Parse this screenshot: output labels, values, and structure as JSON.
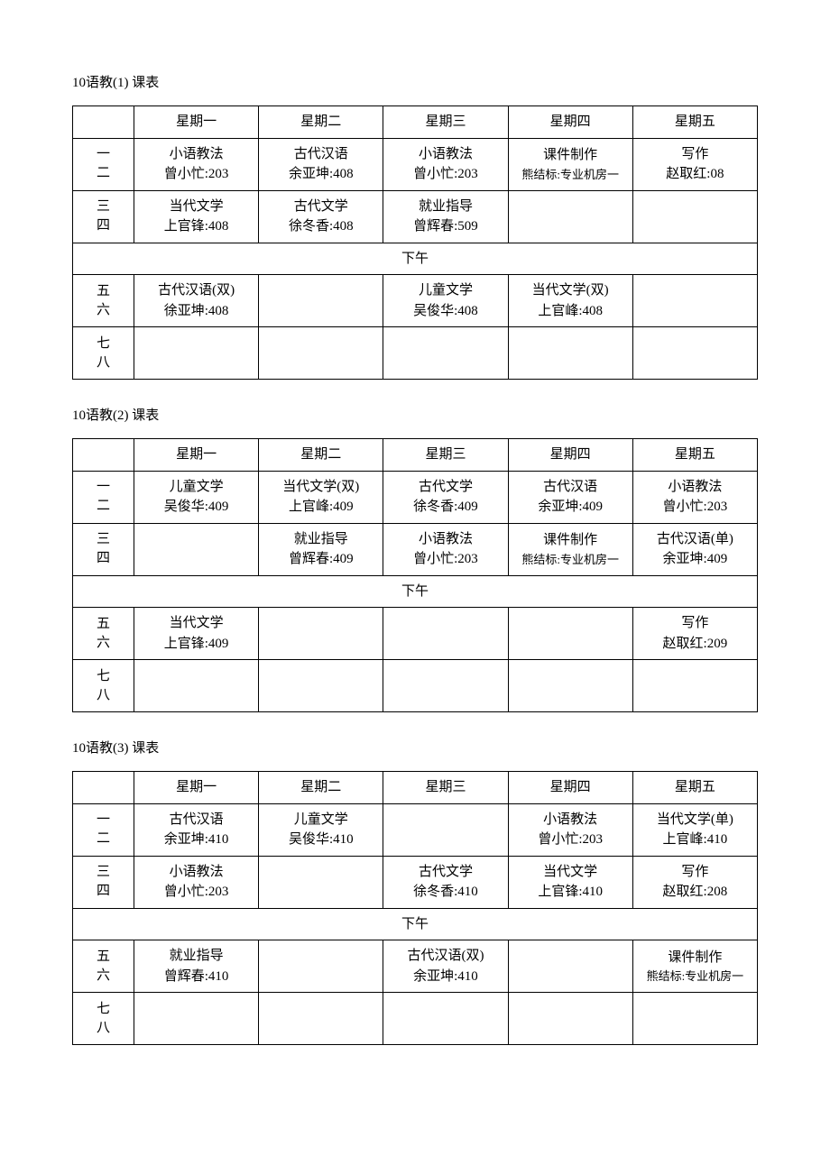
{
  "days": [
    "星期一",
    "星期二",
    "星期三",
    "星期四",
    "星期五"
  ],
  "periods": {
    "p12": "一\n二",
    "p34": "三\n四",
    "p56": "五\n六",
    "p78": "七\n八"
  },
  "afternoon_label": "下午",
  "tables": [
    {
      "title": "10语教(1)  课表",
      "rows": {
        "p12": [
          {
            "l1": "小语教法",
            "l2": "曾小忙:203"
          },
          {
            "l1": "古代汉语",
            "l2": "余亚坤:408"
          },
          {
            "l1": "小语教法",
            "l2": "曾小忙:203"
          },
          {
            "l1": "课件制作",
            "l2": "熊结标:专业机房一",
            "small2": true
          },
          {
            "l1": "写作",
            "l2": "赵取红:08"
          }
        ],
        "p34": [
          {
            "l1": "当代文学",
            "l2": "上官锋:408"
          },
          {
            "l1": "古代文学",
            "l2": "徐冬香:408"
          },
          {
            "l1": "就业指导",
            "l2": "曾辉春:509"
          },
          {
            "l1": "",
            "l2": ""
          },
          {
            "l1": "",
            "l2": ""
          }
        ],
        "p56": [
          {
            "l1": "古代汉语(双)",
            "l2": "徐亚坤:408"
          },
          {
            "l1": "",
            "l2": ""
          },
          {
            "l1": "儿童文学",
            "l2": "吴俊华:408"
          },
          {
            "l1": "当代文学(双)",
            "l2": "上官峰:408"
          },
          {
            "l1": "",
            "l2": ""
          }
        ],
        "p78": [
          {
            "l1": "",
            "l2": ""
          },
          {
            "l1": "",
            "l2": ""
          },
          {
            "l1": "",
            "l2": ""
          },
          {
            "l1": "",
            "l2": ""
          },
          {
            "l1": "",
            "l2": ""
          }
        ]
      }
    },
    {
      "title": "10语教(2)  课表",
      "rows": {
        "p12": [
          {
            "l1": "儿童文学",
            "l2": "吴俊华:409"
          },
          {
            "l1": "当代文学(双)",
            "l2": "上官峰:409"
          },
          {
            "l1": "古代文学",
            "l2": "徐冬香:409"
          },
          {
            "l1": "古代汉语",
            "l2": "余亚坤:409"
          },
          {
            "l1": "小语教法",
            "l2": "曾小忙:203"
          }
        ],
        "p34": [
          {
            "l1": "",
            "l2": ""
          },
          {
            "l1": "就业指导",
            "l2": "曾辉春:409"
          },
          {
            "l1": "小语教法",
            "l2": "曾小忙:203"
          },
          {
            "l1": "课件制作",
            "l2": "熊结标:专业机房一",
            "small2": true
          },
          {
            "l1": "古代汉语(单)",
            "l2": "余亚坤:409"
          }
        ],
        "p56": [
          {
            "l1": "当代文学",
            "l2": "上官锋:409"
          },
          {
            "l1": "",
            "l2": ""
          },
          {
            "l1": "",
            "l2": ""
          },
          {
            "l1": "",
            "l2": ""
          },
          {
            "l1": "写作",
            "l2": "赵取红:209"
          }
        ],
        "p78": [
          {
            "l1": "",
            "l2": ""
          },
          {
            "l1": "",
            "l2": ""
          },
          {
            "l1": "",
            "l2": ""
          },
          {
            "l1": "",
            "l2": ""
          },
          {
            "l1": "",
            "l2": ""
          }
        ]
      }
    },
    {
      "title": "10语教(3)  课表",
      "rows": {
        "p12": [
          {
            "l1": "古代汉语",
            "l2": "余亚坤:410"
          },
          {
            "l1": "儿童文学",
            "l2": "吴俊华:410"
          },
          {
            "l1": "",
            "l2": ""
          },
          {
            "l1": "小语教法",
            "l2": "曾小忙:203"
          },
          {
            "l1": "当代文学(单)",
            "l2": "上官峰:410"
          }
        ],
        "p34": [
          {
            "l1": "小语教法",
            "l2": "曾小忙:203"
          },
          {
            "l1": "",
            "l2": ""
          },
          {
            "l1": "古代文学",
            "l2": "徐冬香:410"
          },
          {
            "l1": "当代文学",
            "l2": "上官锋:410"
          },
          {
            "l1": "写作",
            "l2": "赵取红:208"
          }
        ],
        "p56": [
          {
            "l1": "就业指导",
            "l2": "曾辉春:410"
          },
          {
            "l1": "",
            "l2": ""
          },
          {
            "l1": "古代汉语(双)",
            "l2": "余亚坤:410"
          },
          {
            "l1": "",
            "l2": ""
          },
          {
            "l1": "课件制作",
            "l2": "熊结标:专业机房一",
            "small2": true
          }
        ],
        "p78": [
          {
            "l1": "",
            "l2": ""
          },
          {
            "l1": "",
            "l2": ""
          },
          {
            "l1": "",
            "l2": ""
          },
          {
            "l1": "",
            "l2": ""
          },
          {
            "l1": "",
            "l2": ""
          }
        ]
      }
    }
  ]
}
